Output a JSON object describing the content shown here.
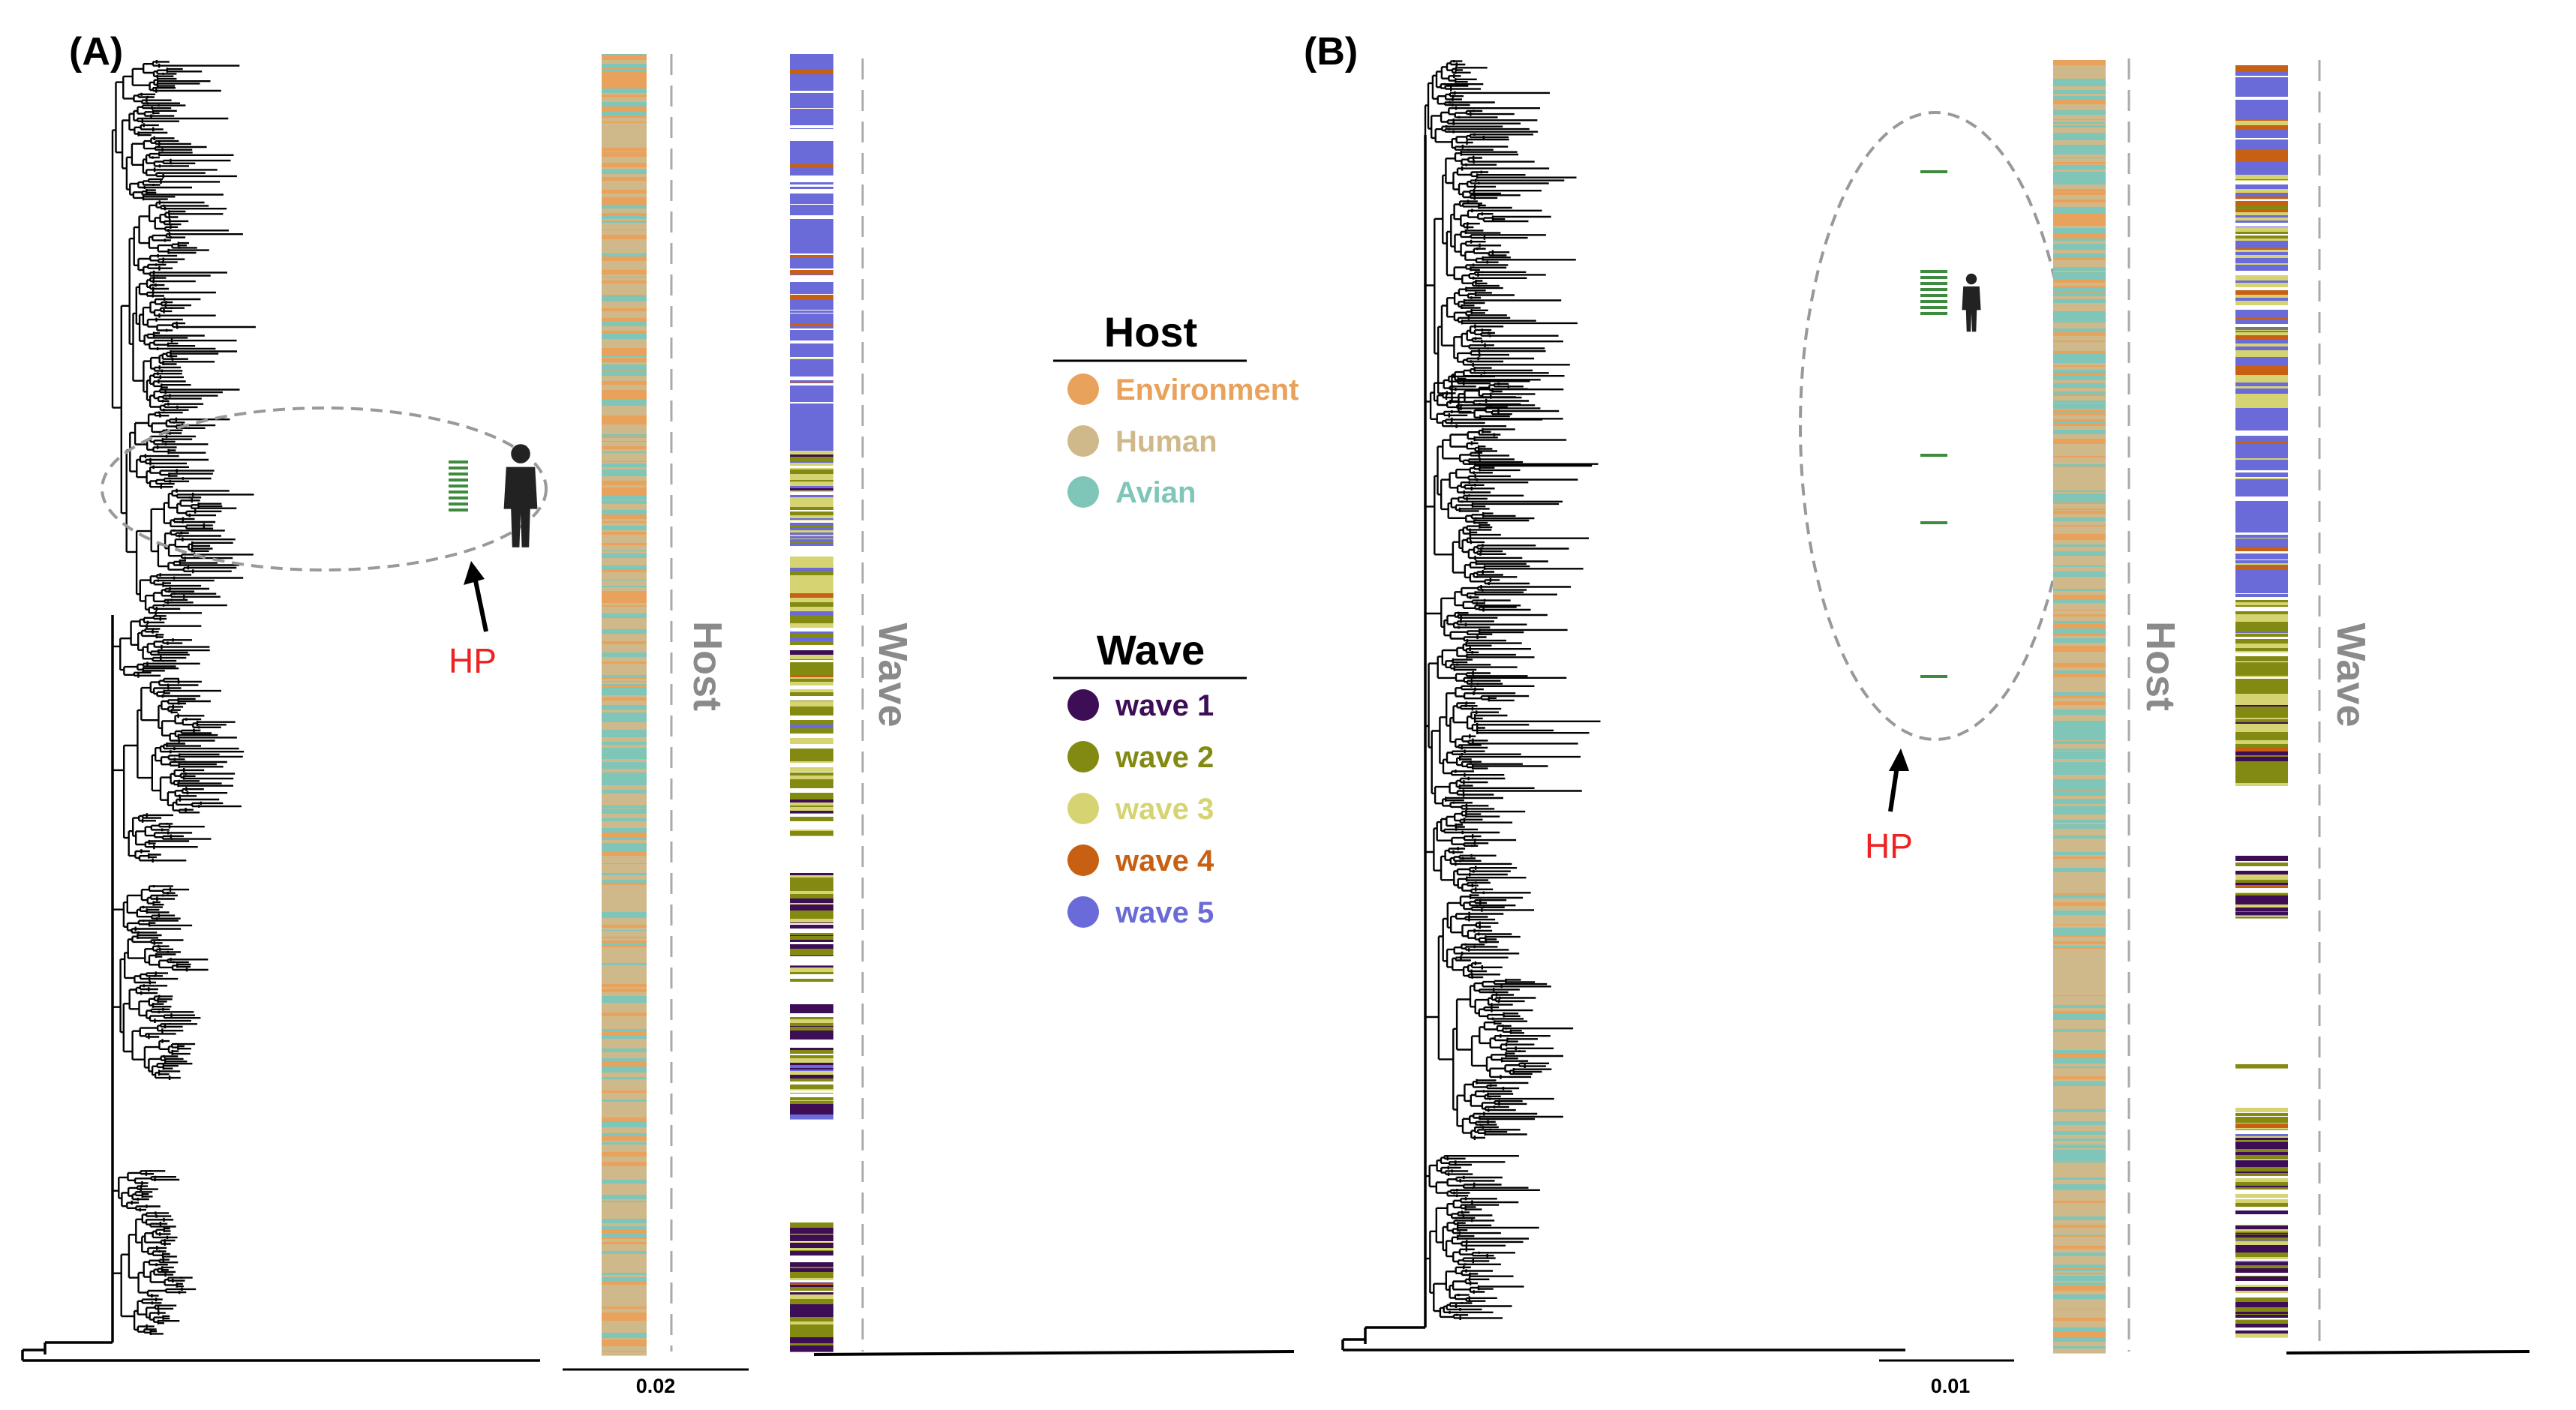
{
  "panels": [
    {
      "label": "(A)",
      "hp_label": "HP",
      "scale_label": "0.02",
      "host_strip_label": "Host",
      "wave_strip_label": "Wave"
    },
    {
      "label": "(B)",
      "hp_label": "HP",
      "scale_label": "0.01",
      "host_strip_label": "Host",
      "wave_strip_label": "Wave"
    }
  ],
  "legend": {
    "host": {
      "title": "Host",
      "items": [
        {
          "label": "Environment",
          "color": "#e8a25c"
        },
        {
          "label": "Human",
          "color": "#cfb98a"
        },
        {
          "label": "Avian",
          "color": "#7fc5b8"
        }
      ]
    },
    "wave": {
      "title": "Wave",
      "items": [
        {
          "label": "wave 1",
          "color": "#3d0d55"
        },
        {
          "label": "wave 2",
          "color": "#838a12"
        },
        {
          "label": "wave 3",
          "color": "#d6d472"
        },
        {
          "label": "wave 4",
          "color": "#c86014"
        },
        {
          "label": "wave 5",
          "color": "#6a6ad8"
        }
      ]
    }
  },
  "colors": {
    "hp_text": "#ee2222",
    "hp_marker": "#3e8a3e",
    "strip_label": "#8a8a8a",
    "tree": "#000000",
    "dashed": "#aaaaaa"
  }
}
